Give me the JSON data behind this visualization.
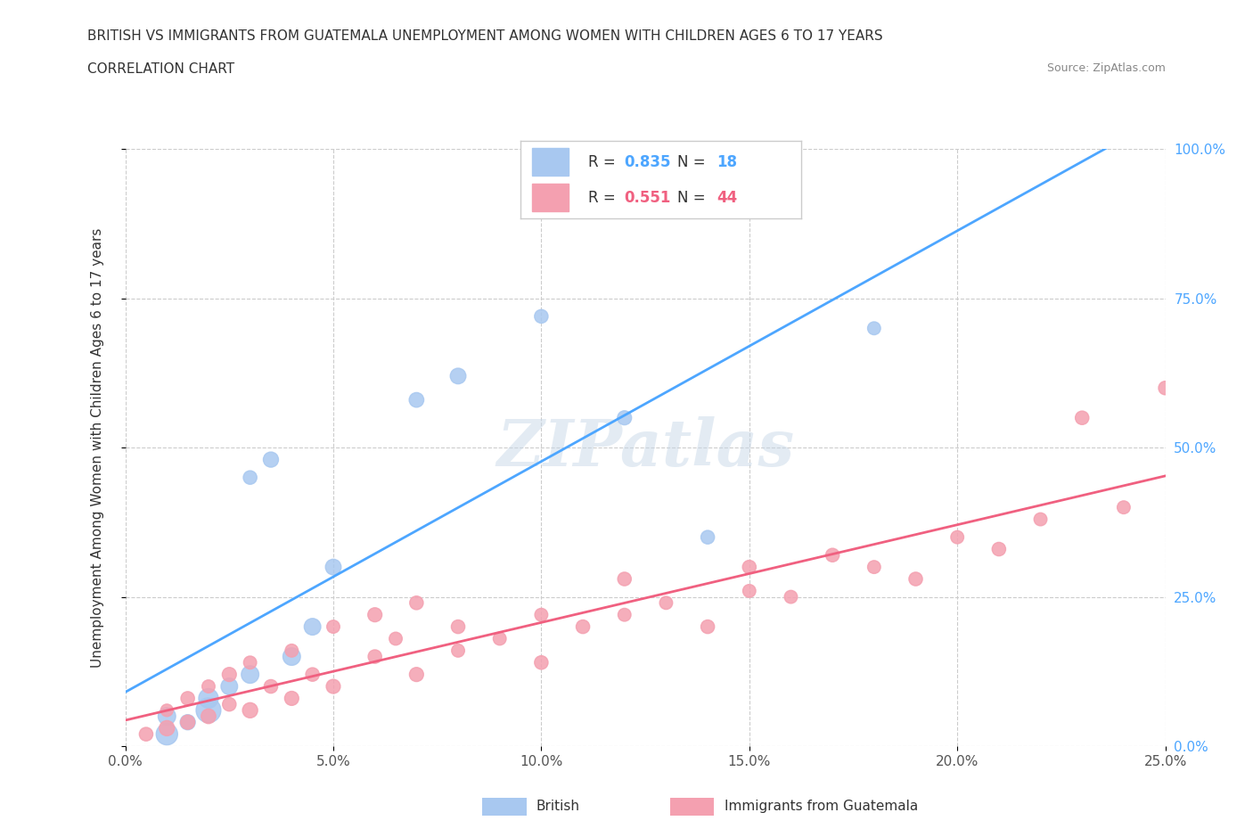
{
  "title_line1": "BRITISH VS IMMIGRANTS FROM GUATEMALA UNEMPLOYMENT AMONG WOMEN WITH CHILDREN AGES 6 TO 17 YEARS",
  "title_line2": "CORRELATION CHART",
  "source": "Source: ZipAtlas.com",
  "ylabel": "Unemployment Among Women with Children Ages 6 to 17 years",
  "xlim": [
    0.0,
    0.25
  ],
  "ylim": [
    0.0,
    1.0
  ],
  "xticks": [
    0.0,
    0.05,
    0.1,
    0.15,
    0.2,
    0.25
  ],
  "yticks": [
    0.0,
    0.25,
    0.5,
    0.75,
    1.0
  ],
  "british_R": 0.835,
  "british_N": 18,
  "guatemala_R": 0.551,
  "guatemala_N": 44,
  "british_color": "#a8c8f0",
  "british_line_color": "#4da6ff",
  "guatemala_color": "#f4a0b0",
  "guatemala_line_color": "#f06080",
  "watermark": "ZIPatlas",
  "watermark_color": "#c8d8e8",
  "british_x": [
    0.01,
    0.01,
    0.015,
    0.02,
    0.02,
    0.025,
    0.03,
    0.03,
    0.035,
    0.04,
    0.045,
    0.05,
    0.07,
    0.08,
    0.1,
    0.12,
    0.14,
    0.18
  ],
  "british_y": [
    0.02,
    0.05,
    0.04,
    0.06,
    0.08,
    0.1,
    0.12,
    0.45,
    0.48,
    0.15,
    0.2,
    0.3,
    0.58,
    0.62,
    0.72,
    0.55,
    0.35,
    0.7
  ],
  "british_sizes": [
    300,
    200,
    150,
    400,
    250,
    180,
    200,
    120,
    150,
    200,
    180,
    160,
    140,
    160,
    120,
    130,
    120,
    110
  ],
  "guatemala_x": [
    0.005,
    0.01,
    0.01,
    0.015,
    0.015,
    0.02,
    0.02,
    0.025,
    0.025,
    0.03,
    0.03,
    0.035,
    0.04,
    0.04,
    0.045,
    0.05,
    0.05,
    0.06,
    0.06,
    0.065,
    0.07,
    0.07,
    0.08,
    0.08,
    0.09,
    0.1,
    0.1,
    0.11,
    0.12,
    0.12,
    0.13,
    0.14,
    0.15,
    0.15,
    0.16,
    0.17,
    0.18,
    0.19,
    0.2,
    0.21,
    0.22,
    0.23,
    0.24,
    0.25
  ],
  "guatemala_y": [
    0.02,
    0.03,
    0.06,
    0.04,
    0.08,
    0.05,
    0.1,
    0.07,
    0.12,
    0.06,
    0.14,
    0.1,
    0.08,
    0.16,
    0.12,
    0.1,
    0.2,
    0.15,
    0.22,
    0.18,
    0.12,
    0.24,
    0.16,
    0.2,
    0.18,
    0.14,
    0.22,
    0.2,
    0.22,
    0.28,
    0.24,
    0.2,
    0.26,
    0.3,
    0.25,
    0.32,
    0.3,
    0.28,
    0.35,
    0.33,
    0.38,
    0.55,
    0.4,
    0.6
  ],
  "guatemala_sizes": [
    120,
    150,
    100,
    130,
    120,
    140,
    110,
    120,
    130,
    150,
    110,
    120,
    130,
    110,
    120,
    130,
    110,
    120,
    130,
    110,
    130,
    120,
    110,
    120,
    110,
    120,
    110,
    120,
    110,
    120,
    110,
    120,
    110,
    120,
    110,
    120,
    110,
    120,
    110,
    120,
    110,
    120,
    110,
    120
  ]
}
